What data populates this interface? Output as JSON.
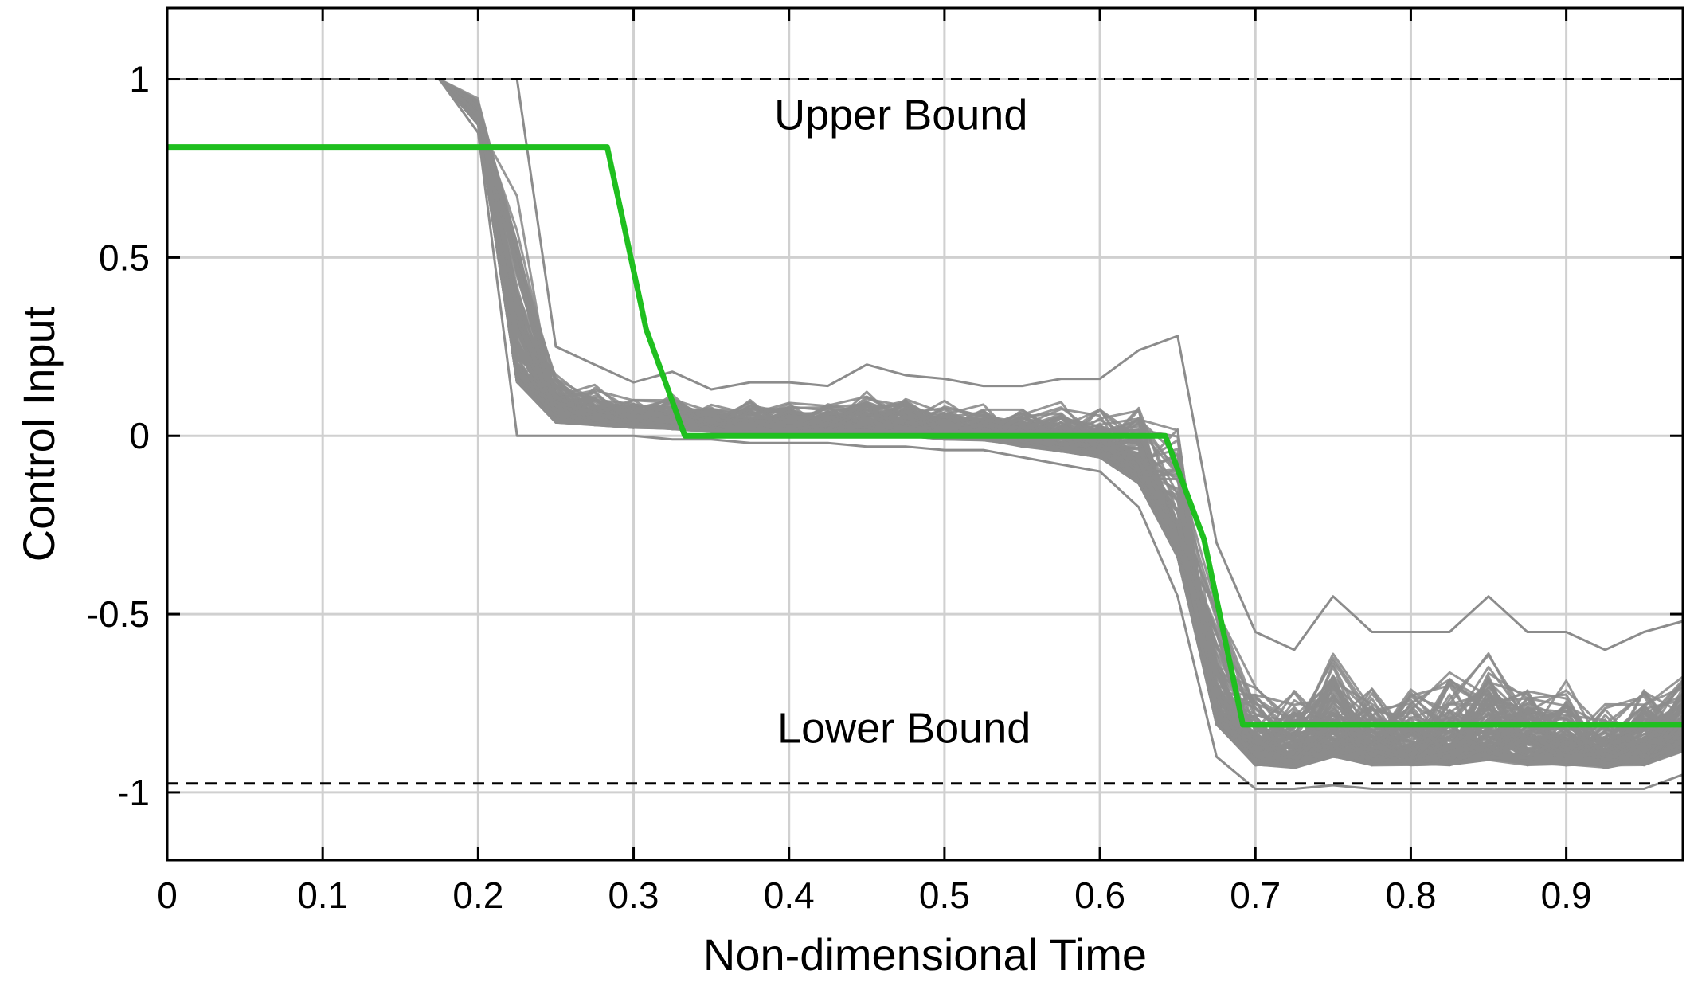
{
  "chart_data": {
    "type": "line",
    "title": "",
    "xlabel": "Non-dimensional Time",
    "ylabel": "Control Input",
    "xlim": [
      0,
      0.975
    ],
    "ylim": [
      -1.19,
      1.2
    ],
    "grid": true,
    "xticks": [
      0,
      0.1,
      0.2,
      0.3,
      0.4,
      0.5,
      0.6,
      0.7,
      0.8,
      0.9
    ],
    "xtick_labels": [
      "0",
      "0.1",
      "0.2",
      "0.3",
      "0.4",
      "0.5",
      "0.6",
      "0.7",
      "0.8",
      "0.9"
    ],
    "yticks": [
      1,
      0.5,
      0,
      -0.5,
      -1
    ],
    "ytick_labels": [
      "1",
      "0.5",
      "0",
      "-0.5",
      "-1"
    ],
    "bounds": [
      {
        "value": 1.0,
        "label": "Upper Bound",
        "label_x": 0.472,
        "label_y": 0.9,
        "style": "dashed",
        "color": "#000000"
      },
      {
        "value": -0.975,
        "label": "Lower Bound",
        "label_x": 0.474,
        "label_y": -0.82,
        "style": "dashed",
        "color": "#000000"
      }
    ],
    "nominal_series": {
      "color": "#1fbf1f",
      "points": [
        [
          0,
          0.81
        ],
        [
          0.283,
          0.81
        ],
        [
          0.308,
          0.3
        ],
        [
          0.333,
          0.0
        ],
        [
          0.642,
          0.0
        ],
        [
          0.667,
          -0.29
        ],
        [
          0.692,
          -0.81
        ],
        [
          0.975,
          -0.81
        ]
      ]
    },
    "ensemble_series": {
      "color": "#8c8c8c",
      "count": 120,
      "x": [
        0,
        0.025,
        0.05,
        0.075,
        0.1,
        0.125,
        0.15,
        0.175,
        0.2,
        0.225,
        0.25,
        0.275,
        0.3,
        0.325,
        0.35,
        0.375,
        0.4,
        0.425,
        0.45,
        0.475,
        0.5,
        0.525,
        0.55,
        0.575,
        0.6,
        0.625,
        0.65,
        0.675,
        0.7,
        0.725,
        0.75,
        0.775,
        0.8,
        0.825,
        0.85,
        0.875,
        0.9,
        0.925,
        0.95,
        0.975
      ],
      "upper_envelope": [
        1.0,
        1.0,
        1.0,
        1.0,
        1.0,
        1.0,
        1.0,
        1.0,
        1.0,
        1.0,
        0.25,
        0.2,
        0.15,
        0.18,
        0.13,
        0.15,
        0.15,
        0.14,
        0.2,
        0.17,
        0.16,
        0.14,
        0.14,
        0.16,
        0.16,
        0.24,
        0.28,
        -0.3,
        -0.55,
        -0.6,
        -0.45,
        -0.55,
        -0.55,
        -0.55,
        -0.45,
        -0.55,
        -0.55,
        -0.6,
        -0.55,
        -0.52
      ],
      "lower_envelope": [
        1.0,
        1.0,
        1.0,
        1.0,
        1.0,
        1.0,
        1.0,
        1.0,
        0.85,
        0.0,
        0.0,
        0.0,
        0.0,
        -0.01,
        -0.01,
        -0.02,
        -0.02,
        -0.02,
        -0.03,
        -0.03,
        -0.04,
        -0.04,
        -0.06,
        -0.08,
        -0.1,
        -0.2,
        -0.45,
        -0.9,
        -0.99,
        -0.99,
        -0.98,
        -0.99,
        -0.99,
        -0.99,
        -0.99,
        -0.99,
        -0.99,
        -0.99,
        -0.99,
        -0.95
      ]
    }
  }
}
